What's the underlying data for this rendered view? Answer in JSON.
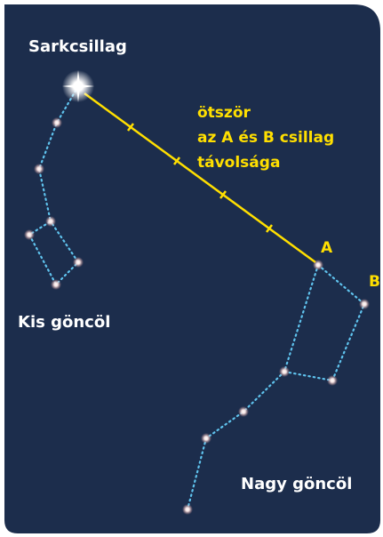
{
  "labels": {
    "polaris": "Sarkcsillag",
    "note_line1": "ötször",
    "note_line2": "az A és B csillag",
    "note_line3": "távolsága",
    "star_a": "A",
    "star_b": "B",
    "little_dipper": "Kis göncöl",
    "big_dipper": "Nagy göncöl"
  }
}
